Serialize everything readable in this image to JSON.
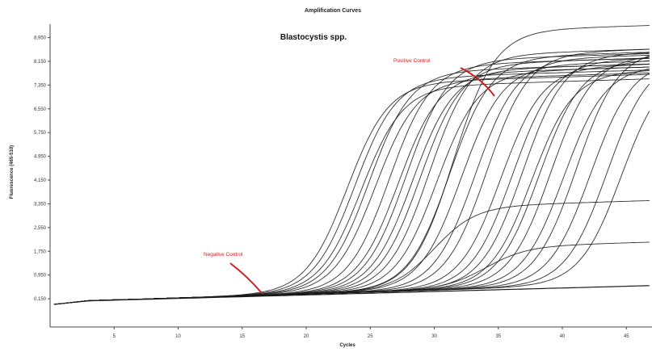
{
  "chart_data": {
    "type": "line",
    "title": "Amplification Curves",
    "subtitle": "Blastocystis spp.",
    "xlabel": "Cycles",
    "ylabel": "Fluorescence (465-510)",
    "xlim": [
      0,
      47
    ],
    "ylim": [
      -0.8,
      9.4
    ],
    "x_ticks": [
      5,
      10,
      15,
      20,
      25,
      30,
      35,
      40,
      45
    ],
    "x_tick_labels": [
      "5",
      "10",
      "15",
      "20",
      "25",
      "30",
      "35",
      "40",
      "45"
    ],
    "y_ticks": [
      0.15,
      0.95,
      1.75,
      2.55,
      3.35,
      4.15,
      4.95,
      5.75,
      6.55,
      7.35,
      8.15,
      8.95
    ],
    "y_tick_labels": [
      "0,150",
      "0,950",
      "1,750",
      "2,550",
      "3,350",
      "4,150",
      "4,950",
      "5,750",
      "6,550",
      "7,350",
      "8,150",
      "8,950"
    ],
    "grid": false,
    "legend": "none",
    "series": [
      {
        "ct": 23.2,
        "plateau": 7.05
      },
      {
        "ct": 23.8,
        "plateau": 7.2
      },
      {
        "ct": 24.3,
        "plateau": 6.9
      },
      {
        "ct": 24.9,
        "plateau": 7.4
      },
      {
        "ct": 25.4,
        "plateau": 7.1
      },
      {
        "ct": 26.5,
        "plateau": 7.6
      },
      {
        "ct": 27.2,
        "plateau": 7.3
      },
      {
        "ct": 27.8,
        "plateau": 7.75
      },
      {
        "ct": 28.3,
        "plateau": 7.4
      },
      {
        "ct": 28.9,
        "plateau": 7.6
      },
      {
        "ct": 29.6,
        "plateau": 7.9
      },
      {
        "ct": 30.2,
        "plateau": 7.3
      },
      {
        "ct": 31.2,
        "plateau": 7.8
      },
      {
        "ct": 32.1,
        "plateau": 7.5
      },
      {
        "ct": 33.2,
        "plateau": 7.7
      },
      {
        "ct": 34.1,
        "plateau": 7.9
      },
      {
        "ct": 35.2,
        "plateau": 7.4
      },
      {
        "ct": 36.1,
        "plateau": 7.6
      },
      {
        "ct": 36.9,
        "plateau": 7.8
      },
      {
        "ct": 37.6,
        "plateau": 7.2
      },
      {
        "ct": 38.2,
        "plateau": 7.55
      },
      {
        "ct": 39.1,
        "plateau": 7.7
      },
      {
        "ct": 40.1,
        "plateau": 7.35
      },
      {
        "ct": 41.1,
        "plateau": 7.9
      },
      {
        "ct": 42.2,
        "plateau": 7.5
      },
      {
        "ct": 43.5,
        "plateau": 7.6
      },
      {
        "ct": 44.6,
        "plateau": 7.3
      },
      {
        "ct": 31.5,
        "plateau": 8.7
      },
      {
        "ct": 30.0,
        "plateau": 2.8
      },
      {
        "ct": 34.0,
        "plateau": 1.4
      }
    ],
    "annotations": [
      {
        "text": "Positive Control",
        "x": 31.0,
        "y": 7.6
      },
      {
        "text": "Negative Control",
        "x": 14.5,
        "y": 0.45
      }
    ],
    "annotation_color": "#cc1f1f",
    "line_color": "#1a1a1a"
  }
}
